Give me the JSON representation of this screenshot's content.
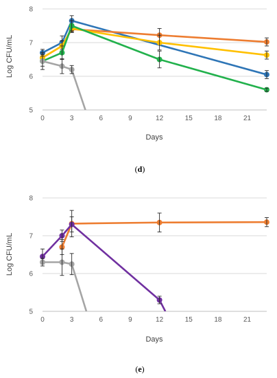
{
  "chart_data": [
    {
      "type": "line",
      "panel_label": "d",
      "xlabel": "Days",
      "ylabel": "Log CFU/mL",
      "xlim": [
        0,
        23
      ],
      "ylim": [
        5,
        8
      ],
      "xticks": [
        0,
        3,
        6,
        9,
        12,
        15,
        18,
        21
      ],
      "yticks": [
        5,
        6,
        7,
        8
      ],
      "grid": "y-major",
      "colors": {
        "blue": "#2E75B6",
        "orange": "#ED7D31",
        "yellow": "#FFC000",
        "green": "#22B14C",
        "gray": "#A5A5A5"
      },
      "series": [
        {
          "color": "#2E75B6",
          "x": [
            0,
            2,
            3,
            23
          ],
          "y": [
            6.7,
            7.0,
            7.65,
            6.05
          ],
          "err": [
            0.1,
            0.2,
            0.15,
            0.12
          ]
        },
        {
          "color": "#ED7D31",
          "x": [
            0,
            2,
            3,
            12,
            23
          ],
          "y": [
            6.55,
            6.9,
            7.4,
            7.22,
            7.02
          ],
          "err": [
            0.1,
            0.15,
            0.1,
            0.2,
            0.12
          ]
        },
        {
          "color": "#FFC000",
          "x": [
            0,
            2,
            3,
            12,
            23
          ],
          "y": [
            6.55,
            6.9,
            7.42,
            7.0,
            6.63
          ],
          "err": [
            0.1,
            0.15,
            0.1,
            0.22,
            0.12
          ]
        },
        {
          "color": "#22B14C",
          "x": [
            0,
            2,
            3,
            12,
            23
          ],
          "y": [
            6.45,
            6.7,
            7.5,
            6.5,
            5.6
          ],
          "err": [
            0.15,
            0.2,
            0.15,
            0.25,
            0.05
          ]
        },
        {
          "color": "#A5A5A5",
          "x": [
            0,
            2,
            3,
            4.4
          ],
          "y": [
            6.45,
            6.3,
            6.2,
            5.0
          ],
          "err": [
            0.25,
            0.22,
            0.12,
            null
          ]
        }
      ]
    },
    {
      "type": "line",
      "panel_label": "e",
      "xlabel": "Days",
      "ylabel": "Log CFU/mL",
      "xlim": [
        0,
        23
      ],
      "ylim": [
        5,
        8
      ],
      "xticks": [
        0,
        3,
        6,
        9,
        12,
        15,
        18,
        21
      ],
      "yticks": [
        5,
        6,
        7,
        8
      ],
      "grid": "y-major",
      "colors": {
        "orange": "#ED7D31",
        "purple": "#7030A0",
        "gray": "#A5A5A5"
      },
      "series": [
        {
          "color": "#ED7D31",
          "x": [
            2,
            3,
            12,
            23
          ],
          "y": [
            6.7,
            7.32,
            7.35,
            7.36
          ],
          "err": [
            0.2,
            0.35,
            0.25,
            0.12
          ]
        },
        {
          "color": "#7030A0",
          "x": [
            0,
            2,
            3,
            12,
            12.6
          ],
          "y": [
            6.45,
            7.0,
            7.3,
            5.3,
            5.0
          ],
          "err": [
            0.2,
            0.15,
            0.2,
            0.1,
            null
          ]
        },
        {
          "color": "#A5A5A5",
          "x": [
            0,
            2,
            3,
            4.5
          ],
          "y": [
            6.3,
            6.3,
            6.25,
            5.0
          ],
          "err": [
            0.1,
            0.35,
            0.28,
            null
          ]
        }
      ]
    }
  ]
}
